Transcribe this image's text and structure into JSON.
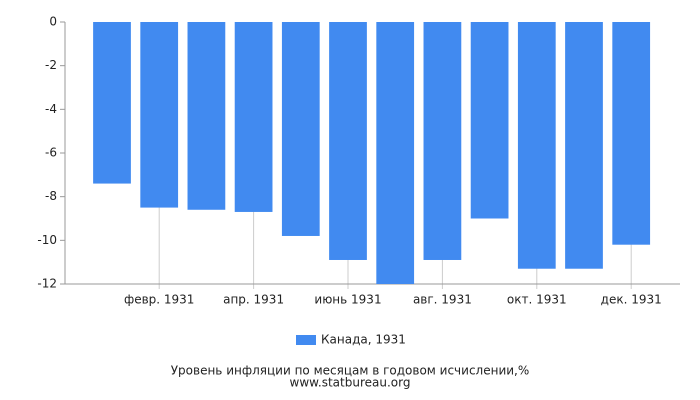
{
  "chart_data": {
    "type": "bar",
    "categories": [
      null,
      "февр. 1931",
      null,
      "апр. 1931",
      null,
      "июнь 1931",
      null,
      "авг. 1931",
      null,
      "окт. 1931",
      null,
      "дек. 1931"
    ],
    "series": [
      {
        "name": "Канада, 1931",
        "color": "#418af0",
        "values": [
          -7.4,
          -8.5,
          -8.6,
          -8.7,
          -9.8,
          -10.9,
          -12.0,
          -10.9,
          -9.0,
          -11.3,
          -11.3,
          -10.2
        ]
      }
    ],
    "ylim": [
      -12,
      0
    ],
    "yticks": [
      0,
      -2,
      -4,
      -6,
      -8,
      -10,
      -12
    ],
    "grid": true,
    "caption": "Уровень инфляции по месяцам в годовом исчислении,%",
    "source": "www.statbureau.org"
  }
}
